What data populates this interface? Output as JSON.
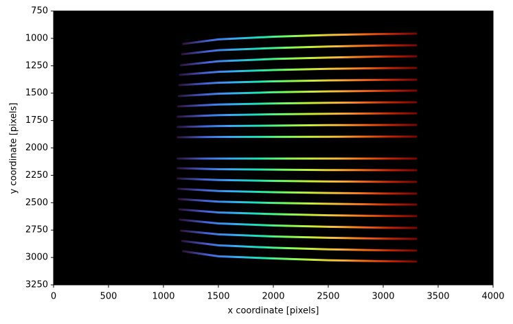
{
  "chart_data": {
    "type": "line",
    "xlabel": "x coordinate [pixels]",
    "ylabel": "y coordinate [pixels]",
    "xlim": [
      0,
      4000
    ],
    "xticks": [
      0,
      500,
      1000,
      1500,
      2000,
      2500,
      3000,
      3500,
      4000
    ],
    "ylim": [
      3250,
      750
    ],
    "yticks": [
      750,
      1000,
      1250,
      1500,
      1750,
      2000,
      2250,
      2500,
      2750,
      3000,
      3250
    ],
    "background": "#000000",
    "colormap": [
      "#30123b",
      "#4662d7",
      "#36aaf9",
      "#1ae4b6",
      "#72fe5e",
      "#c7ef34",
      "#fbb938",
      "#f56918",
      "#c42503",
      "#7a0403"
    ],
    "series": [
      {
        "x": [
          1180,
          1500,
          2000,
          2500,
          3000,
          3300
        ],
        "values": [
          1051,
          1009,
          985,
          969,
          960,
          957
        ]
      },
      {
        "x": [
          1170,
          1500,
          2000,
          2500,
          3000,
          3300
        ],
        "values": [
          1145,
          1108,
          1088,
          1074,
          1065,
          1063
        ]
      },
      {
        "x": [
          1160,
          1500,
          2000,
          2500,
          3000,
          3300
        ],
        "values": [
          1245,
          1209,
          1188,
          1175,
          1166,
          1164
        ]
      },
      {
        "x": [
          1150,
          1500,
          2000,
          2500,
          3000,
          3300
        ],
        "values": [
          1333,
          1305,
          1289,
          1278,
          1272,
          1270
        ]
      },
      {
        "x": [
          1145,
          1500,
          2000,
          2500,
          3000,
          3300
        ],
        "values": [
          1427,
          1405,
          1392,
          1384,
          1379,
          1377
        ]
      },
      {
        "x": [
          1140,
          1500,
          2000,
          2500,
          3000,
          3300
        ],
        "values": [
          1527,
          1505,
          1492,
          1484,
          1479,
          1477
        ]
      },
      {
        "x": [
          1135,
          1500,
          2000,
          2500,
          3000,
          3300
        ],
        "values": [
          1621,
          1604,
          1594,
          1588,
          1584,
          1583
        ]
      },
      {
        "x": [
          1130,
          1500,
          2000,
          2500,
          3000,
          3300
        ],
        "values": [
          1715,
          1701,
          1693,
          1688,
          1685,
          1684
        ]
      },
      {
        "x": [
          1130,
          1500,
          2000,
          2500,
          3000,
          3300
        ],
        "values": [
          1809,
          1800,
          1796,
          1792,
          1791,
          1790
        ]
      },
      {
        "x": [
          1130,
          1500,
          2000,
          2500,
          3000,
          3300
        ],
        "values": [
          1903,
          1900,
          1899,
          1898,
          1897,
          1897
        ]
      },
      {
        "x": [
          1130,
          1500,
          2000,
          2500,
          3000,
          3300
        ],
        "values": [
          2097,
          2097,
          2097,
          2097,
          2097,
          2097
        ]
      },
      {
        "x": [
          1130,
          1500,
          2000,
          2500,
          3000,
          3300
        ],
        "values": [
          2185,
          2194,
          2198,
          2202,
          2203,
          2204
        ]
      },
      {
        "x": [
          1130,
          1500,
          2000,
          2500,
          3000,
          3300
        ],
        "values": [
          2279,
          2293,
          2301,
          2306,
          2309,
          2310
        ]
      },
      {
        "x": [
          1135,
          1500,
          2000,
          2500,
          3000,
          3300
        ],
        "values": [
          2373,
          2393,
          2404,
          2411,
          2416,
          2417
        ]
      },
      {
        "x": [
          1140,
          1500,
          2000,
          2500,
          3000,
          3300
        ],
        "values": [
          2467,
          2490,
          2502,
          2510,
          2516,
          2517
        ]
      },
      {
        "x": [
          1145,
          1500,
          2000,
          2500,
          3000,
          3300
        ],
        "values": [
          2561,
          2589,
          2604,
          2615,
          2621,
          2623
        ]
      },
      {
        "x": [
          1150,
          1500,
          2000,
          2500,
          3000,
          3300
        ],
        "values": [
          2655,
          2689,
          2708,
          2720,
          2728,
          2730
        ]
      },
      {
        "x": [
          1160,
          1500,
          2000,
          2500,
          3000,
          3300
        ],
        "values": [
          2755,
          2789,
          2808,
          2820,
          2828,
          2830
        ]
      },
      {
        "x": [
          1170,
          1500,
          2000,
          2500,
          3000,
          3300
        ],
        "values": [
          2849,
          2889,
          2911,
          2926,
          2934,
          2937
        ]
      },
      {
        "x": [
          1180,
          1500,
          2000,
          2500,
          3000,
          3300
        ],
        "values": [
          2943,
          2989,
          3009,
          3025,
          3034,
          3037
        ]
      }
    ]
  }
}
